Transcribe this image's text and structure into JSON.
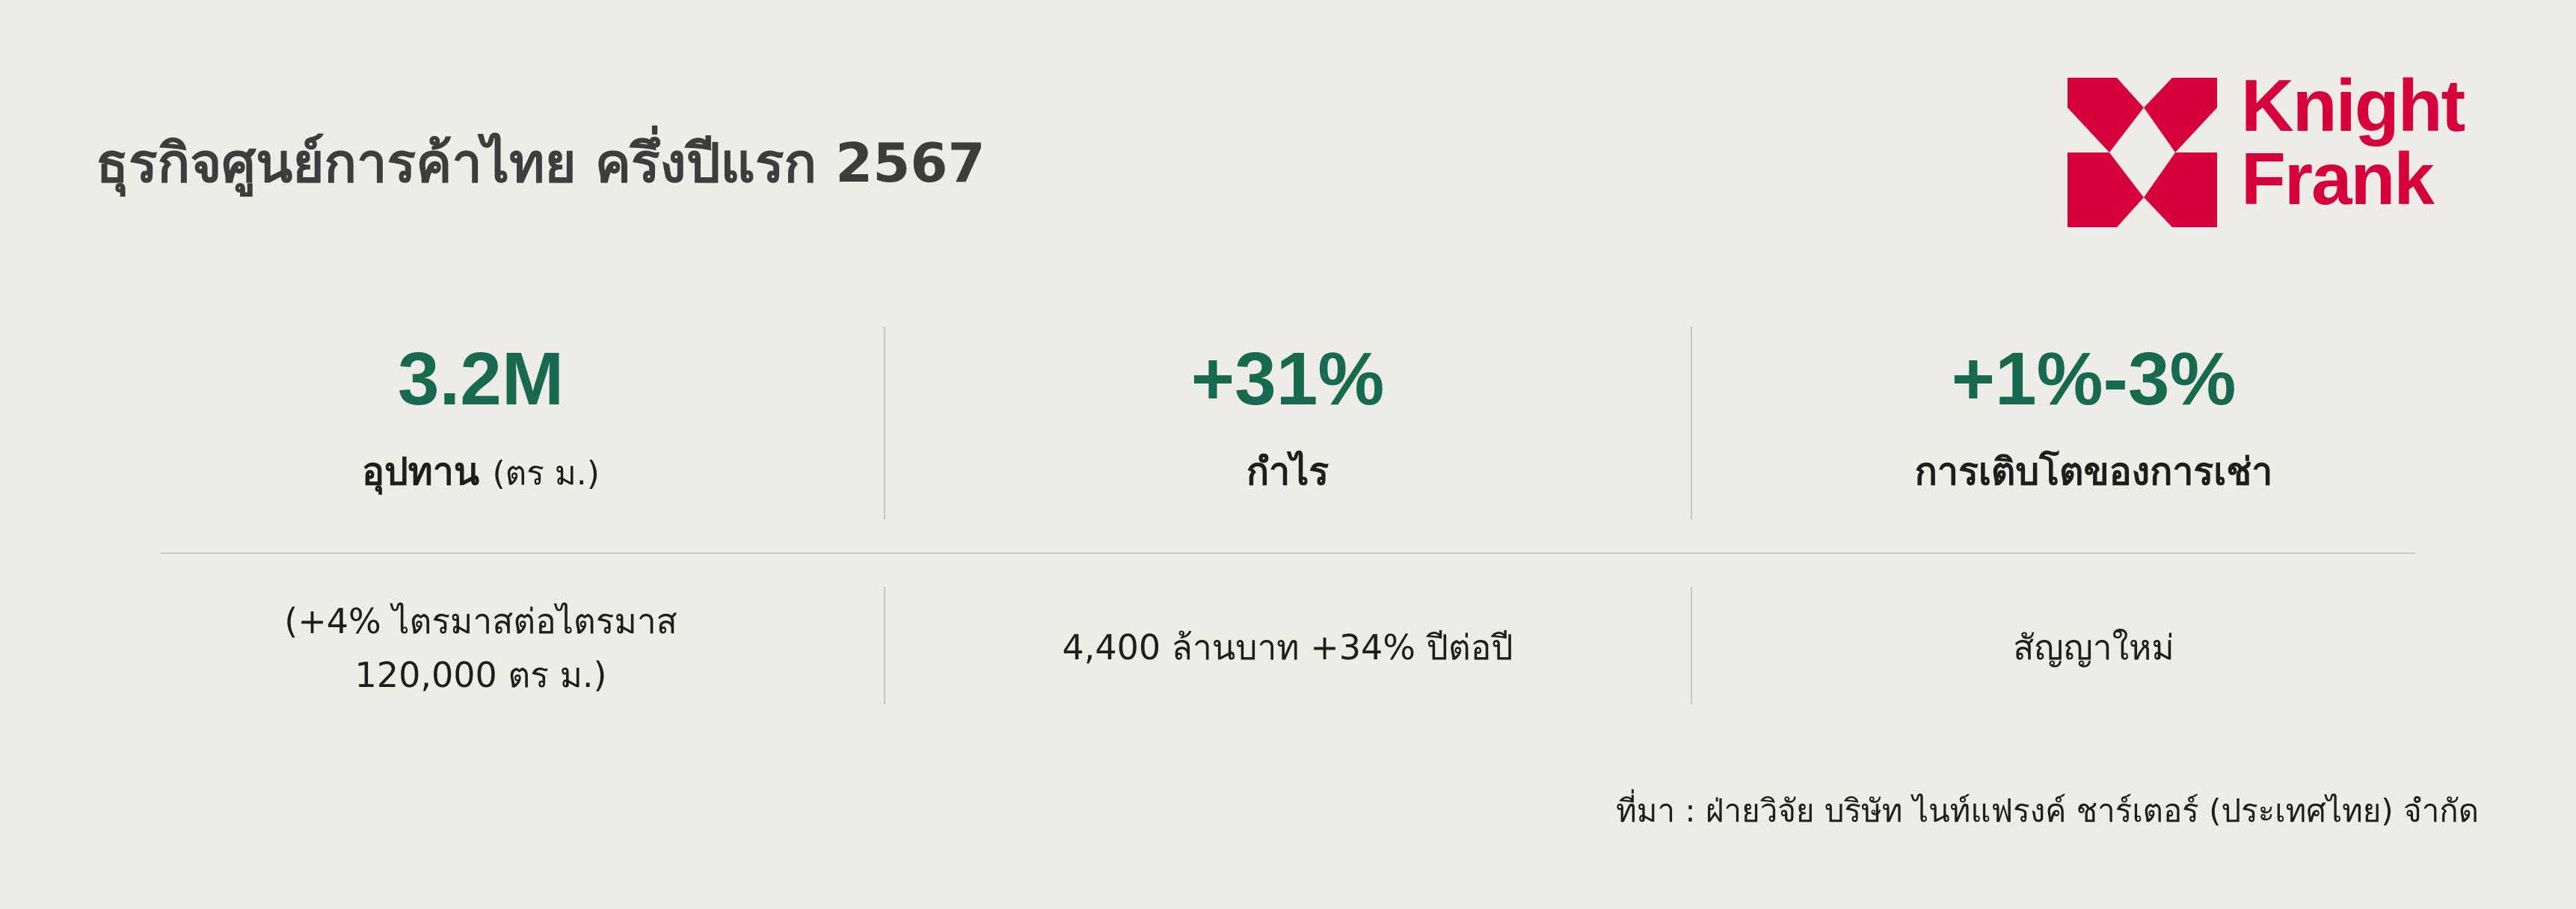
{
  "header": {
    "title": "ธุรกิจศูนย์การค้าไทย ครึ่งปีแรก 2567"
  },
  "logo": {
    "text_line1": "Knight",
    "text_line2": "Frank",
    "color": "#d6003a"
  },
  "accent_color": "#17694f",
  "metrics": [
    {
      "value": "3.2M",
      "label": "อุปทาน",
      "label_unit": "(ตร ม.)",
      "detail_line1": "(+4% ไตรมาสต่อไตรมาส",
      "detail_line2": "120,000 ตร ม.)"
    },
    {
      "value": "+31%",
      "label": "กำไร",
      "detail_line1": "4,400 ล้านบาท +34% ปีต่อปี"
    },
    {
      "value": "+1%-3%",
      "label": "การเติบโตของการเช่า",
      "detail_line1": "สัญญาใหม่"
    }
  ],
  "footer": {
    "source": "ที่มา : ฝ่ายวิจัย บริษัท ไนท์แฟรงค์ ชาร์เตอร์ (ประเทศไทย) จำกัด"
  }
}
